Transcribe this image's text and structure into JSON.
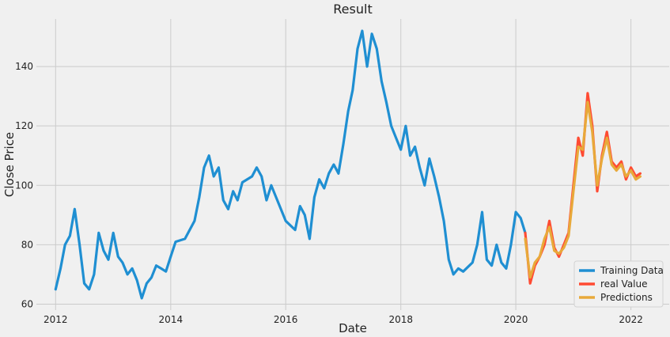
{
  "chart_data": {
    "type": "line",
    "title": "Result",
    "xlabel": "Date",
    "ylabel": "Close Price",
    "xlim": [
      "2011-09-01",
      "2022-09-01"
    ],
    "ylim": [
      58,
      156
    ],
    "x_ticks": [
      {
        "date": "2012-01-01",
        "label": "2012"
      },
      {
        "date": "2014-01-01",
        "label": "2014"
      },
      {
        "date": "2016-01-01",
        "label": "2016"
      },
      {
        "date": "2018-01-01",
        "label": "2018"
      },
      {
        "date": "2020-01-01",
        "label": "2020"
      },
      {
        "date": "2022-01-01",
        "label": "2022"
      }
    ],
    "y_ticks": [
      60,
      80,
      100,
      120,
      140
    ],
    "grid": true,
    "legend_position": "lower right",
    "series": [
      {
        "name": "Training Data",
        "color": "#1f8fd2",
        "points": [
          [
            "2012-01-01",
            65
          ],
          [
            "2012-02-01",
            72
          ],
          [
            "2012-03-01",
            80
          ],
          [
            "2012-04-01",
            83
          ],
          [
            "2012-05-01",
            92
          ],
          [
            "2012-06-01",
            80
          ],
          [
            "2012-07-01",
            67
          ],
          [
            "2012-08-01",
            65
          ],
          [
            "2012-09-01",
            70
          ],
          [
            "2012-10-01",
            84
          ],
          [
            "2012-11-01",
            78
          ],
          [
            "2012-12-01",
            75
          ],
          [
            "2013-01-01",
            84
          ],
          [
            "2013-02-01",
            76
          ],
          [
            "2013-03-01",
            74
          ],
          [
            "2013-04-01",
            70
          ],
          [
            "2013-05-01",
            72
          ],
          [
            "2013-06-01",
            68
          ],
          [
            "2013-07-01",
            62
          ],
          [
            "2013-08-01",
            67
          ],
          [
            "2013-09-01",
            69
          ],
          [
            "2013-10-01",
            73
          ],
          [
            "2013-11-01",
            72
          ],
          [
            "2013-12-01",
            71
          ],
          [
            "2014-01-01",
            76
          ],
          [
            "2014-02-01",
            81
          ],
          [
            "2014-04-01",
            82
          ],
          [
            "2014-06-01",
            88
          ],
          [
            "2014-07-01",
            96
          ],
          [
            "2014-08-01",
            106
          ],
          [
            "2014-09-01",
            110
          ],
          [
            "2014-10-01",
            103
          ],
          [
            "2014-11-01",
            106
          ],
          [
            "2014-12-01",
            95
          ],
          [
            "2015-01-01",
            92
          ],
          [
            "2015-02-01",
            98
          ],
          [
            "2015-03-01",
            95
          ],
          [
            "2015-04-01",
            101
          ],
          [
            "2015-06-01",
            103
          ],
          [
            "2015-07-01",
            106
          ],
          [
            "2015-08-01",
            103
          ],
          [
            "2015-09-01",
            95
          ],
          [
            "2015-10-01",
            100
          ],
          [
            "2015-11-01",
            96
          ],
          [
            "2016-01-01",
            88
          ],
          [
            "2016-03-01",
            85
          ],
          [
            "2016-04-01",
            93
          ],
          [
            "2016-05-01",
            90
          ],
          [
            "2016-06-01",
            82
          ],
          [
            "2016-07-01",
            96
          ],
          [
            "2016-08-01",
            102
          ],
          [
            "2016-09-01",
            99
          ],
          [
            "2016-10-01",
            104
          ],
          [
            "2016-11-01",
            107
          ],
          [
            "2016-12-01",
            104
          ],
          [
            "2017-01-01",
            114
          ],
          [
            "2017-02-01",
            125
          ],
          [
            "2017-03-01",
            132
          ],
          [
            "2017-04-01",
            146
          ],
          [
            "2017-05-01",
            152
          ],
          [
            "2017-06-01",
            140
          ],
          [
            "2017-07-01",
            151
          ],
          [
            "2017-08-01",
            146
          ],
          [
            "2017-09-01",
            135
          ],
          [
            "2017-10-01",
            128
          ],
          [
            "2017-11-01",
            120
          ],
          [
            "2017-12-01",
            116
          ],
          [
            "2018-01-01",
            112
          ],
          [
            "2018-02-01",
            120
          ],
          [
            "2018-03-01",
            110
          ],
          [
            "2018-04-01",
            113
          ],
          [
            "2018-05-01",
            106
          ],
          [
            "2018-06-01",
            100
          ],
          [
            "2018-07-01",
            109
          ],
          [
            "2018-08-01",
            103
          ],
          [
            "2018-09-01",
            96
          ],
          [
            "2018-10-01",
            88
          ],
          [
            "2018-11-01",
            75
          ],
          [
            "2018-12-01",
            70
          ],
          [
            "2019-01-01",
            72
          ],
          [
            "2019-02-01",
            71
          ],
          [
            "2019-04-01",
            74
          ],
          [
            "2019-05-01",
            80
          ],
          [
            "2019-06-01",
            91
          ],
          [
            "2019-07-01",
            75
          ],
          [
            "2019-08-01",
            73
          ],
          [
            "2019-09-01",
            80
          ],
          [
            "2019-10-01",
            74
          ],
          [
            "2019-11-01",
            72
          ],
          [
            "2019-12-01",
            80
          ],
          [
            "2020-01-01",
            91
          ],
          [
            "2020-02-01",
            89
          ],
          [
            "2020-03-01",
            84
          ]
        ]
      },
      {
        "name": "real Value",
        "color": "#ff4b33",
        "points": [
          [
            "2020-03-01",
            84
          ],
          [
            "2020-04-01",
            67
          ],
          [
            "2020-05-01",
            73
          ],
          [
            "2020-06-01",
            76
          ],
          [
            "2020-07-01",
            80
          ],
          [
            "2020-08-01",
            88
          ],
          [
            "2020-09-01",
            79
          ],
          [
            "2020-10-01",
            76
          ],
          [
            "2020-11-01",
            80
          ],
          [
            "2020-12-01",
            84
          ],
          [
            "2021-01-01",
            100
          ],
          [
            "2021-02-01",
            116
          ],
          [
            "2021-03-01",
            110
          ],
          [
            "2021-04-01",
            131
          ],
          [
            "2021-05-01",
            120
          ],
          [
            "2021-06-01",
            98
          ],
          [
            "2021-07-01",
            110
          ],
          [
            "2021-08-01",
            118
          ],
          [
            "2021-09-01",
            108
          ],
          [
            "2021-10-01",
            106
          ],
          [
            "2021-11-01",
            108
          ],
          [
            "2021-12-01",
            102
          ],
          [
            "2022-01-01",
            106
          ],
          [
            "2022-02-01",
            103
          ],
          [
            "2022-03-01",
            104
          ]
        ]
      },
      {
        "name": "Predictions",
        "color": "#e8a93a",
        "points": [
          [
            "2020-03-01",
            82
          ],
          [
            "2020-04-01",
            69
          ],
          [
            "2020-05-01",
            74
          ],
          [
            "2020-06-01",
            76
          ],
          [
            "2020-07-01",
            82
          ],
          [
            "2020-08-01",
            86
          ],
          [
            "2020-09-01",
            78
          ],
          [
            "2020-10-01",
            77
          ],
          [
            "2020-11-01",
            79
          ],
          [
            "2020-12-01",
            83
          ],
          [
            "2021-01-01",
            98
          ],
          [
            "2021-02-01",
            113
          ],
          [
            "2021-03-01",
            112
          ],
          [
            "2021-04-01",
            128
          ],
          [
            "2021-05-01",
            118
          ],
          [
            "2021-06-01",
            100
          ],
          [
            "2021-07-01",
            109
          ],
          [
            "2021-08-01",
            116
          ],
          [
            "2021-09-01",
            107
          ],
          [
            "2021-10-01",
            105
          ],
          [
            "2021-11-01",
            107
          ],
          [
            "2021-12-01",
            103
          ],
          [
            "2022-01-01",
            105
          ],
          [
            "2022-02-01",
            102
          ],
          [
            "2022-03-01",
            103
          ]
        ]
      }
    ]
  }
}
